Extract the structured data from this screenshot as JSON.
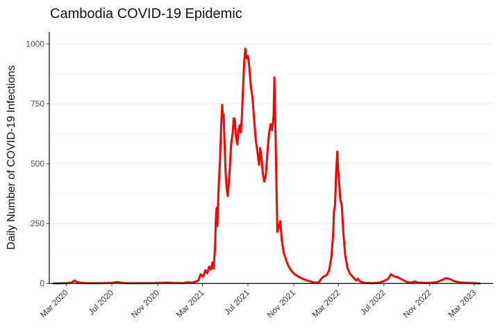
{
  "chart_data": {
    "type": "line",
    "title": "Cambodia COVID-19 Epidemic",
    "xlabel": "",
    "ylabel": "Daily Number of COVID-19 Infections",
    "x_type": "date",
    "xlim": [
      "2020-01-15",
      "2023-04-20"
    ],
    "ylim": [
      0,
      1050
    ],
    "y_ticks": [
      0,
      250,
      500,
      750,
      1000
    ],
    "x_ticks": [
      {
        "date": "2020-03-01",
        "label": "Mar 2020"
      },
      {
        "date": "2020-07-01",
        "label": "Jul 2020"
      },
      {
        "date": "2020-11-01",
        "label": "Nov 2020"
      },
      {
        "date": "2021-03-01",
        "label": "Mar 2021"
      },
      {
        "date": "2021-07-01",
        "label": "Jul 2021"
      },
      {
        "date": "2021-11-01",
        "label": "Nov 2021"
      },
      {
        "date": "2022-03-01",
        "label": "Mar 2022"
      },
      {
        "date": "2022-07-01",
        "label": "Jul 2022"
      },
      {
        "date": "2022-11-01",
        "label": "Nov 2022"
      },
      {
        "date": "2023-03-01",
        "label": "Mar 2023"
      }
    ],
    "grid": true,
    "legend": "none",
    "series": [
      {
        "color": "#ff0000",
        "points": [
          [
            "2020-01-27",
            0
          ],
          [
            "2020-03-01",
            1
          ],
          [
            "2020-03-15",
            3
          ],
          [
            "2020-03-22",
            12
          ],
          [
            "2020-03-29",
            6
          ],
          [
            "2020-04-08",
            2
          ],
          [
            "2020-05-01",
            1
          ],
          [
            "2020-06-01",
            1
          ],
          [
            "2020-07-01",
            2
          ],
          [
            "2020-07-15",
            6
          ],
          [
            "2020-07-25",
            3
          ],
          [
            "2020-08-05",
            1
          ],
          [
            "2020-09-01",
            1
          ],
          [
            "2020-10-15",
            1
          ],
          [
            "2020-11-25",
            3
          ],
          [
            "2020-12-10",
            2
          ],
          [
            "2021-01-10",
            1
          ],
          [
            "2021-01-22",
            5
          ],
          [
            "2021-02-01",
            2
          ],
          [
            "2021-02-18",
            12
          ],
          [
            "2021-02-24",
            38
          ],
          [
            "2021-03-03",
            28
          ],
          [
            "2021-03-09",
            55
          ],
          [
            "2021-03-14",
            42
          ],
          [
            "2021-03-19",
            70
          ],
          [
            "2021-03-24",
            58
          ],
          [
            "2021-03-28",
            88
          ],
          [
            "2021-03-31",
            62
          ],
          [
            "2021-04-04",
            155
          ],
          [
            "2021-04-06",
            270
          ],
          [
            "2021-04-08",
            315
          ],
          [
            "2021-04-10",
            240
          ],
          [
            "2021-04-13",
            385
          ],
          [
            "2021-04-15",
            450
          ],
          [
            "2021-04-17",
            510
          ],
          [
            "2021-04-20",
            650
          ],
          [
            "2021-04-23",
            745
          ],
          [
            "2021-04-25",
            690
          ],
          [
            "2021-04-27",
            705
          ],
          [
            "2021-04-29",
            600
          ],
          [
            "2021-05-02",
            470
          ],
          [
            "2021-05-05",
            395
          ],
          [
            "2021-05-08",
            365
          ],
          [
            "2021-05-13",
            470
          ],
          [
            "2021-05-17",
            580
          ],
          [
            "2021-05-21",
            625
          ],
          [
            "2021-05-24",
            690
          ],
          [
            "2021-05-27",
            685
          ],
          [
            "2021-05-30",
            610
          ],
          [
            "2021-06-03",
            580
          ],
          [
            "2021-06-06",
            640
          ],
          [
            "2021-06-09",
            660
          ],
          [
            "2021-06-12",
            630
          ],
          [
            "2021-06-15",
            700
          ],
          [
            "2021-06-18",
            820
          ],
          [
            "2021-06-21",
            920
          ],
          [
            "2021-06-24",
            980
          ],
          [
            "2021-06-27",
            940
          ],
          [
            "2021-07-01",
            950
          ],
          [
            "2021-07-05",
            900
          ],
          [
            "2021-07-09",
            820
          ],
          [
            "2021-07-13",
            780
          ],
          [
            "2021-07-17",
            700
          ],
          [
            "2021-07-22",
            600
          ],
          [
            "2021-07-27",
            545
          ],
          [
            "2021-07-31",
            495
          ],
          [
            "2021-08-03",
            565
          ],
          [
            "2021-08-06",
            535
          ],
          [
            "2021-08-10",
            460
          ],
          [
            "2021-08-14",
            425
          ],
          [
            "2021-08-18",
            450
          ],
          [
            "2021-08-23",
            560
          ],
          [
            "2021-08-27",
            630
          ],
          [
            "2021-08-31",
            665
          ],
          [
            "2021-09-04",
            640
          ],
          [
            "2021-09-08",
            700
          ],
          [
            "2021-09-10",
            860
          ],
          [
            "2021-09-12",
            720
          ],
          [
            "2021-09-15",
            470
          ],
          [
            "2021-09-18",
            215
          ],
          [
            "2021-09-22",
            235
          ],
          [
            "2021-09-26",
            260
          ],
          [
            "2021-09-30",
            180
          ],
          [
            "2021-10-05",
            130
          ],
          [
            "2021-10-11",
            100
          ],
          [
            "2021-10-18",
            72
          ],
          [
            "2021-10-25",
            55
          ],
          [
            "2021-11-02",
            40
          ],
          [
            "2021-11-12",
            30
          ],
          [
            "2021-11-24",
            20
          ],
          [
            "2021-12-08",
            12
          ],
          [
            "2021-12-20",
            6
          ],
          [
            "2021-12-30",
            3
          ],
          [
            "2022-01-08",
            6
          ],
          [
            "2022-01-15",
            22
          ],
          [
            "2022-01-22",
            30
          ],
          [
            "2022-01-29",
            35
          ],
          [
            "2022-02-04",
            55
          ],
          [
            "2022-02-10",
            110
          ],
          [
            "2022-02-15",
            210
          ],
          [
            "2022-02-17",
            300
          ],
          [
            "2022-02-20",
            330
          ],
          [
            "2022-02-23",
            470
          ],
          [
            "2022-02-26",
            550
          ],
          [
            "2022-03-01",
            455
          ],
          [
            "2022-03-03",
            420
          ],
          [
            "2022-03-06",
            350
          ],
          [
            "2022-03-10",
            325
          ],
          [
            "2022-03-14",
            215
          ],
          [
            "2022-03-19",
            120
          ],
          [
            "2022-03-25",
            65
          ],
          [
            "2022-04-01",
            40
          ],
          [
            "2022-04-10",
            25
          ],
          [
            "2022-04-18",
            12
          ],
          [
            "2022-04-22",
            20
          ],
          [
            "2022-04-28",
            8
          ],
          [
            "2022-05-10",
            2
          ],
          [
            "2022-06-01",
            1
          ],
          [
            "2022-06-20",
            3
          ],
          [
            "2022-07-01",
            10
          ],
          [
            "2022-07-12",
            18
          ],
          [
            "2022-07-20",
            38
          ],
          [
            "2022-07-28",
            30
          ],
          [
            "2022-08-08",
            25
          ],
          [
            "2022-08-20",
            15
          ],
          [
            "2022-09-01",
            6
          ],
          [
            "2022-09-12",
            3
          ],
          [
            "2022-09-22",
            8
          ],
          [
            "2022-10-01",
            3
          ],
          [
            "2022-10-15",
            2
          ],
          [
            "2022-11-01",
            2
          ],
          [
            "2022-11-20",
            5
          ],
          [
            "2022-12-05",
            15
          ],
          [
            "2022-12-15",
            22
          ],
          [
            "2022-12-25",
            18
          ],
          [
            "2023-01-05",
            10
          ],
          [
            "2023-01-20",
            4
          ],
          [
            "2023-02-10",
            2
          ],
          [
            "2023-03-01",
            1
          ],
          [
            "2023-03-15",
            0
          ]
        ]
      }
    ]
  }
}
